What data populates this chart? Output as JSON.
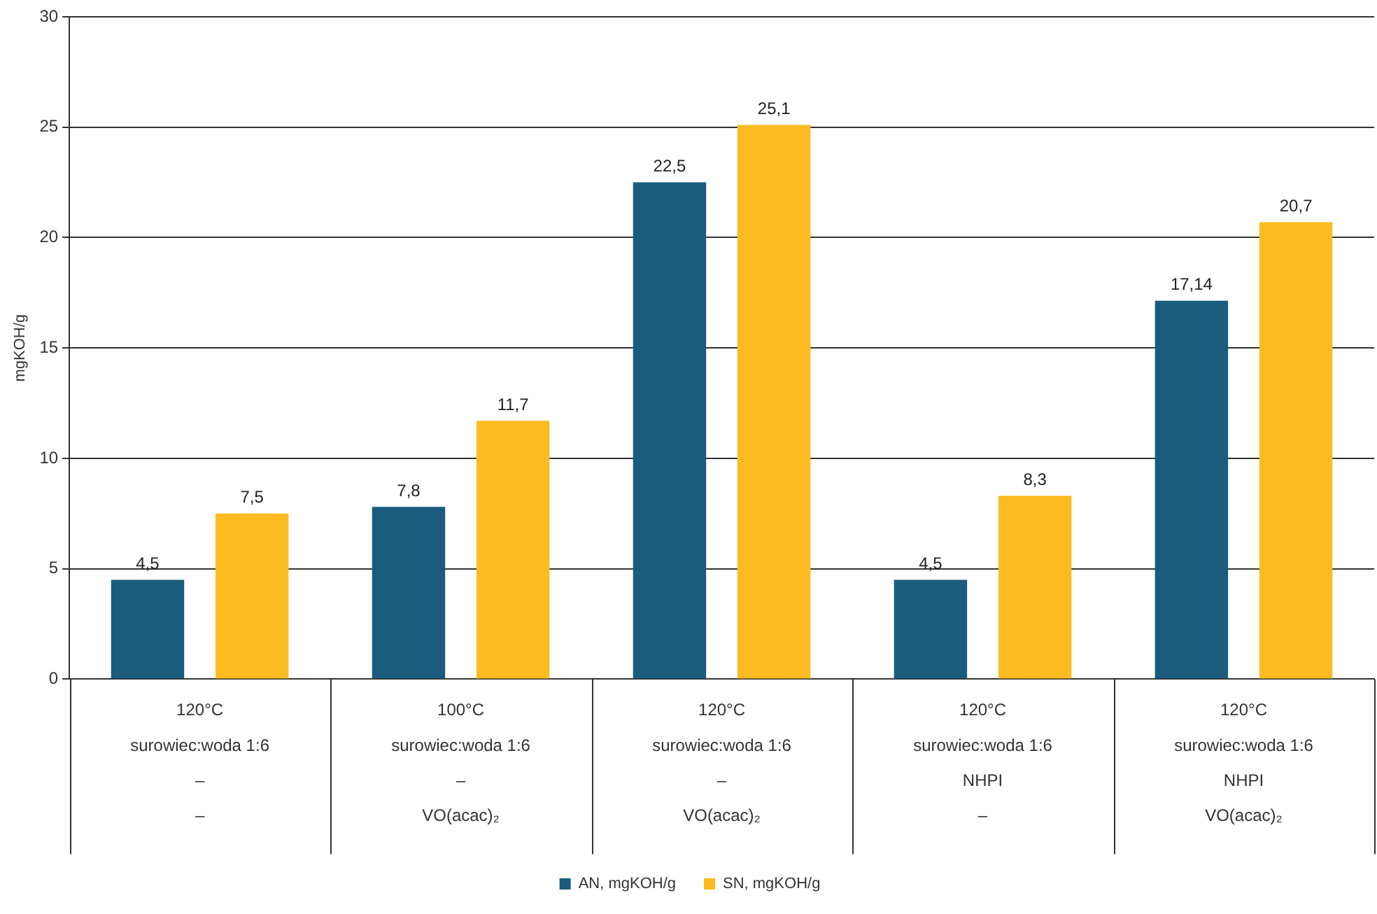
{
  "chart_data": {
    "type": "bar",
    "ylabel": "mgKOH/g",
    "categories": [
      "120°C\nsurowiec:woda 1:6\n–\n–",
      "100°C\nsurowiec:woda 1:6\n–\nVO(acac)₂",
      "120°C\nsurowiec:woda 1:6\n–\nVO(acac)₂",
      "120°C\nsurowiec:woda 1:6\nNHPI\n–",
      "120°C\nsurowiec:woda 1:6\nNHPI\nVO(acac)₂"
    ],
    "series": [
      {
        "name": "AN, mgKOH/g",
        "color": "#1a5b7e",
        "values": [
          4.5,
          7.8,
          22.5,
          4.5,
          17.14
        ],
        "value_labels": [
          "4,5",
          "7,8",
          "22,5",
          "4,5",
          "17,14"
        ]
      },
      {
        "name": "SN, mgKOH/g",
        "color": "#fbbb21",
        "values": [
          7.5,
          11.7,
          25.1,
          8.3,
          20.7
        ],
        "value_labels": [
          "7,5",
          "11,7",
          "25,1",
          "8,3",
          "20,7"
        ]
      }
    ],
    "ylim": [
      0,
      30
    ],
    "yticks": [
      0,
      5,
      10,
      15,
      20,
      25,
      30
    ],
    "grid": "y",
    "legend": "bottom"
  }
}
